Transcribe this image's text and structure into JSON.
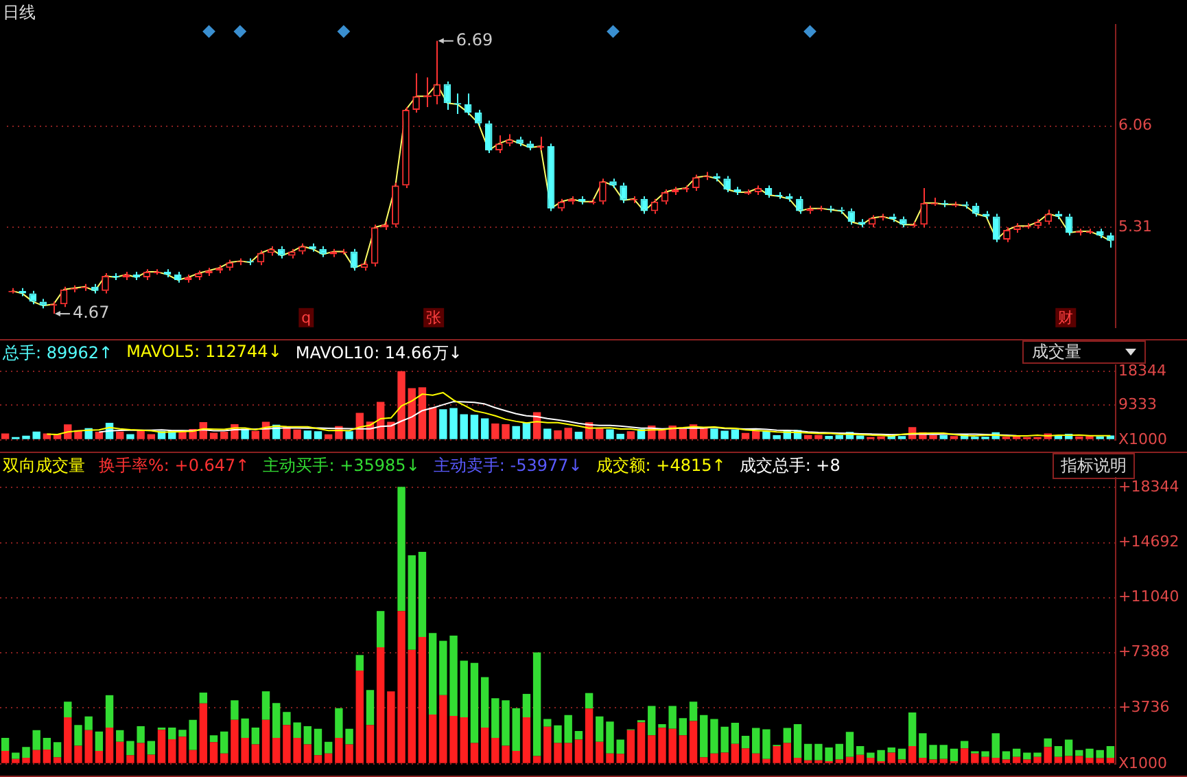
{
  "chart_data": [
    {
      "type": "candlestick",
      "title": "日线",
      "tick_labels": "y",
      "grid": "y",
      "ylim": [
        4.57,
        6.81
      ],
      "yticks": [
        5.31,
        6.06
      ],
      "categories": [
        null,
        null,
        null,
        null,
        null,
        null,
        null,
        null,
        null,
        null,
        null,
        null,
        null,
        null,
        null,
        null,
        null,
        null,
        null,
        null,
        null,
        null,
        null,
        null,
        null,
        null,
        null,
        null,
        null,
        null,
        null,
        null,
        null,
        null,
        null,
        null,
        null,
        null,
        null,
        null,
        null,
        null,
        null,
        null,
        null,
        null,
        null,
        null,
        null,
        null,
        null,
        null,
        null,
        null,
        null,
        null,
        null,
        null,
        null,
        null,
        null,
        null,
        null,
        null,
        null,
        null,
        null,
        null,
        null,
        null,
        null,
        null,
        null,
        null,
        null,
        null,
        null,
        null,
        null,
        null,
        null,
        null,
        null,
        null,
        null,
        null,
        null,
        null,
        null,
        null,
        null,
        null,
        null,
        null,
        null,
        null,
        null,
        null,
        null,
        null,
        null,
        null,
        null,
        null,
        null,
        null,
        null
      ],
      "ohlc": [
        [
          4.83,
          4.86,
          4.82,
          4.84
        ],
        [
          4.84,
          4.86,
          4.8,
          4.82
        ],
        [
          4.82,
          4.84,
          4.74,
          4.76
        ],
        [
          4.76,
          4.78,
          4.71,
          4.73
        ],
        [
          4.73,
          4.76,
          4.67,
          4.74
        ],
        [
          4.74,
          4.87,
          4.72,
          4.85
        ],
        [
          4.85,
          4.88,
          4.83,
          4.86
        ],
        [
          4.86,
          4.89,
          4.84,
          4.87
        ],
        [
          4.87,
          4.89,
          4.82,
          4.84
        ],
        [
          4.84,
          4.97,
          4.82,
          4.95
        ],
        [
          4.95,
          4.97,
          4.92,
          4.94
        ],
        [
          4.94,
          4.98,
          4.92,
          4.96
        ],
        [
          4.96,
          4.98,
          4.92,
          4.94
        ],
        [
          4.94,
          5.0,
          4.92,
          4.98
        ],
        [
          4.97,
          5.0,
          4.96,
          4.98
        ],
        [
          4.98,
          5.0,
          4.94,
          4.96
        ],
        [
          4.96,
          4.98,
          4.9,
          4.92
        ],
        [
          4.92,
          4.96,
          4.9,
          4.94
        ],
        [
          4.94,
          4.99,
          4.92,
          4.97
        ],
        [
          4.97,
          5.01,
          4.95,
          4.99
        ],
        [
          4.99,
          5.03,
          4.97,
          5.01
        ],
        [
          5.01,
          5.07,
          4.99,
          5.05
        ],
        [
          5.05,
          5.08,
          5.03,
          5.06
        ],
        [
          5.06,
          5.08,
          5.03,
          5.05
        ],
        [
          5.05,
          5.14,
          5.03,
          5.12
        ],
        [
          5.12,
          5.17,
          5.1,
          5.15
        ],
        [
          5.15,
          5.17,
          5.08,
          5.1
        ],
        [
          5.1,
          5.15,
          5.08,
          5.13
        ],
        [
          5.13,
          5.19,
          5.11,
          5.17
        ],
        [
          5.17,
          5.19,
          5.13,
          5.15
        ],
        [
          5.15,
          5.17,
          5.09,
          5.11
        ],
        [
          5.11,
          5.15,
          5.09,
          5.13
        ],
        [
          5.12,
          5.15,
          5.11,
          5.13
        ],
        [
          5.13,
          5.15,
          4.99,
          5.01
        ],
        [
          5.01,
          5.06,
          4.99,
          5.04
        ],
        [
          5.04,
          5.33,
          5.02,
          5.31
        ],
        [
          5.31,
          5.35,
          5.29,
          5.33
        ],
        [
          5.33,
          5.64,
          5.31,
          5.62
        ],
        [
          5.62,
          6.2,
          5.6,
          6.18
        ],
        [
          6.18,
          6.45,
          6.16,
          6.28
        ],
        [
          6.28,
          6.42,
          6.2,
          6.28
        ],
        [
          6.28,
          6.69,
          6.22,
          6.37
        ],
        [
          6.37,
          6.39,
          6.18,
          6.23
        ],
        [
          6.23,
          6.3,
          6.15,
          6.22
        ],
        [
          6.22,
          6.3,
          6.14,
          6.16
        ],
        [
          6.16,
          6.18,
          6.06,
          6.08
        ],
        [
          6.08,
          6.1,
          5.86,
          5.88
        ],
        [
          5.88,
          5.99,
          5.86,
          5.93
        ],
        [
          5.93,
          6.0,
          5.91,
          5.96
        ],
        [
          5.96,
          5.98,
          5.91,
          5.93
        ],
        [
          5.93,
          5.95,
          5.88,
          5.9
        ],
        [
          5.9,
          5.98,
          5.88,
          5.91
        ],
        [
          5.91,
          5.93,
          5.43,
          5.45
        ],
        [
          5.45,
          5.52,
          5.43,
          5.5
        ],
        [
          5.5,
          5.54,
          5.48,
          5.52
        ],
        [
          5.52,
          5.54,
          5.48,
          5.5
        ],
        [
          5.49,
          5.52,
          5.48,
          5.5
        ],
        [
          5.5,
          5.67,
          5.48,
          5.65
        ],
        [
          5.65,
          5.67,
          5.6,
          5.62
        ],
        [
          5.62,
          5.64,
          5.49,
          5.51
        ],
        [
          5.51,
          5.54,
          5.49,
          5.52
        ],
        [
          5.52,
          5.54,
          5.41,
          5.43
        ],
        [
          5.43,
          5.52,
          5.41,
          5.5
        ],
        [
          5.5,
          5.59,
          5.48,
          5.57
        ],
        [
          5.57,
          5.61,
          5.55,
          5.59
        ],
        [
          5.59,
          5.62,
          5.57,
          5.6
        ],
        [
          5.6,
          5.7,
          5.58,
          5.68
        ],
        [
          5.68,
          5.72,
          5.66,
          5.69
        ],
        [
          5.69,
          5.71,
          5.65,
          5.67
        ],
        [
          5.67,
          5.69,
          5.57,
          5.59
        ],
        [
          5.59,
          5.61,
          5.55,
          5.57
        ],
        [
          5.56,
          5.59,
          5.55,
          5.57
        ],
        [
          5.57,
          5.62,
          5.55,
          5.6
        ],
        [
          5.6,
          5.62,
          5.53,
          5.55
        ],
        [
          5.55,
          5.57,
          5.52,
          5.54
        ],
        [
          5.54,
          5.56,
          5.5,
          5.52
        ],
        [
          5.52,
          5.54,
          5.41,
          5.43
        ],
        [
          5.43,
          5.47,
          5.41,
          5.45
        ],
        [
          5.44,
          5.47,
          5.43,
          5.45
        ],
        [
          5.45,
          5.47,
          5.42,
          5.44
        ],
        [
          5.44,
          5.46,
          5.41,
          5.43
        ],
        [
          5.43,
          5.45,
          5.33,
          5.35
        ],
        [
          5.35,
          5.37,
          5.31,
          5.33
        ],
        [
          5.33,
          5.4,
          5.31,
          5.38
        ],
        [
          5.38,
          5.41,
          5.36,
          5.39
        ],
        [
          5.39,
          5.41,
          5.35,
          5.37
        ],
        [
          5.37,
          5.39,
          5.31,
          5.33
        ],
        [
          5.32,
          5.35,
          5.31,
          5.33
        ],
        [
          5.33,
          5.6,
          5.31,
          5.49
        ],
        [
          5.48,
          5.53,
          5.47,
          5.49
        ],
        [
          5.49,
          5.51,
          5.46,
          5.48
        ],
        [
          5.47,
          5.5,
          5.46,
          5.48
        ],
        [
          5.48,
          5.5,
          5.45,
          5.47
        ],
        [
          5.47,
          5.49,
          5.39,
          5.41
        ],
        [
          5.41,
          5.43,
          5.37,
          5.39
        ],
        [
          5.39,
          5.41,
          5.2,
          5.22
        ],
        [
          5.22,
          5.31,
          5.2,
          5.29
        ],
        [
          5.29,
          5.34,
          5.27,
          5.32
        ],
        [
          5.31,
          5.34,
          5.3,
          5.32
        ],
        [
          5.32,
          5.37,
          5.3,
          5.35
        ],
        [
          5.35,
          5.44,
          5.33,
          5.41
        ],
        [
          5.41,
          5.43,
          5.37,
          5.39
        ],
        [
          5.39,
          5.41,
          5.25,
          5.27
        ],
        [
          5.27,
          5.3,
          5.25,
          5.28
        ],
        [
          5.27,
          5.3,
          5.26,
          5.28
        ],
        [
          5.28,
          5.3,
          5.23,
          5.25
        ],
        [
          5.25,
          5.27,
          5.16,
          5.21
        ]
      ],
      "series": [
        {
          "type": "line",
          "color": "#ffff66",
          "values": [
            4.84,
            4.82,
            4.76,
            4.73,
            4.74,
            4.85,
            4.86,
            4.87,
            4.84,
            4.95,
            4.94,
            4.96,
            4.94,
            4.98,
            4.98,
            4.96,
            4.92,
            4.94,
            4.97,
            4.99,
            5.01,
            5.05,
            5.06,
            5.05,
            5.12,
            5.15,
            5.1,
            5.13,
            5.17,
            5.15,
            5.11,
            5.13,
            5.13,
            5.01,
            5.04,
            5.31,
            5.33,
            5.62,
            6.18,
            6.28,
            6.28,
            6.37,
            6.23,
            6.22,
            6.16,
            6.08,
            5.88,
            5.93,
            5.96,
            5.93,
            5.9,
            5.91,
            5.45,
            5.5,
            5.52,
            5.5,
            5.5,
            5.65,
            5.62,
            5.51,
            5.52,
            5.43,
            5.5,
            5.57,
            5.59,
            5.6,
            5.68,
            5.69,
            5.67,
            5.59,
            5.57,
            5.57,
            5.6,
            5.55,
            5.54,
            5.52,
            5.43,
            5.45,
            5.45,
            5.44,
            5.43,
            5.35,
            5.33,
            5.38,
            5.39,
            5.37,
            5.33,
            5.33,
            5.49,
            5.49,
            5.48,
            5.48,
            5.47,
            5.41,
            5.39,
            5.22,
            5.29,
            5.32,
            5.32,
            5.35,
            5.41,
            5.39,
            5.27,
            5.28,
            5.28,
            5.25,
            5.21
          ]
        },
        {
          "type": "scatter",
          "color": "#3a8fd0",
          "marker": "diamond",
          "values": [
            null,
            null,
            null,
            null,
            null,
            null,
            null,
            null,
            null,
            null,
            null,
            null,
            null,
            null,
            null,
            null,
            null,
            null,
            null,
            6.76,
            null,
            null,
            6.76,
            null,
            null,
            null,
            null,
            null,
            null,
            null,
            null,
            null,
            6.76,
            null,
            null,
            null,
            null,
            null,
            null,
            null,
            null,
            null,
            null,
            null,
            null,
            null,
            null,
            null,
            null,
            null,
            null,
            null,
            null,
            null,
            null,
            null,
            null,
            null,
            6.76,
            null,
            null,
            null,
            null,
            null,
            null,
            null,
            null,
            null,
            null,
            null,
            null,
            null,
            null,
            null,
            null,
            null,
            null,
            6.76,
            null,
            null,
            null,
            null,
            null,
            null,
            null,
            null,
            null,
            null,
            null,
            null,
            null,
            null,
            null,
            null,
            null,
            null,
            null,
            null,
            null,
            null,
            null,
            null,
            null,
            null,
            null,
            null,
            null
          ]
        }
      ],
      "annotations": [
        "4.67",
        "6.69",
        "q",
        "张",
        "财"
      ]
    },
    {
      "type": "bar",
      "title": "成交量",
      "tick_labels": "y",
      "grid": "y",
      "ylim": [
        0,
        20000
      ],
      "yticks": [
        {
          "value": 0,
          "label": "X1000"
        },
        9333,
        18344
      ],
      "categories": [
        null,
        null,
        null,
        null,
        null,
        null,
        null,
        null,
        null,
        null,
        null,
        null,
        null,
        null,
        null,
        null,
        null,
        null,
        null,
        null,
        null,
        null,
        null,
        null,
        null,
        null,
        null,
        null,
        null,
        null,
        null,
        null,
        null,
        null,
        null,
        null,
        null,
        null,
        null,
        null,
        null,
        null,
        null,
        null,
        null,
        null,
        null,
        null,
        null,
        null,
        null,
        null,
        null,
        null,
        null,
        null,
        null,
        null,
        null,
        null,
        null,
        null,
        null,
        null,
        null,
        null,
        null,
        null,
        null,
        null,
        null,
        null,
        null,
        null,
        null,
        null,
        null,
        null,
        null,
        null,
        null,
        null,
        null,
        null,
        null,
        null,
        null,
        null,
        null,
        null,
        null,
        null,
        null,
        null,
        null,
        null,
        null,
        null,
        null,
        null,
        null,
        null,
        null,
        null,
        null,
        null,
        null
      ],
      "series": [
        {
          "values": [
            1720,
            745,
            1118,
            2236,
            1720,
            1433,
            4128,
            2580,
            3153,
            2150,
            4558,
            2236,
            1519,
            2494,
            1519,
            2408,
            2408,
            2264,
            2924,
            4730,
            1892,
            2150,
            4214,
            3010,
            2408,
            4816,
            4042,
            3440,
            2752,
            2494,
            2322,
            1462,
            3698,
            2322,
            7224,
            4902,
            10148,
            4816,
            18400,
            13846,
            14075,
            8686,
            8170,
            8514,
            6851,
            6708,
            5762,
            4357,
            4214,
            3698,
            4644,
            7396,
            2981,
            2551,
            3239,
            2179,
            4701,
            3153,
            2809,
            1605,
            2293,
            2895,
            3841,
            2637,
            3841,
            3038,
            4128,
            3239,
            2981,
            2465,
            2723,
            1863,
            2379,
            2293,
            1261,
            2379,
            2637,
            1319,
            1319,
            1089,
            1319,
            2121,
            1175,
            745,
            917,
            1089,
            1003,
            3411,
            2035,
            1261,
            1261,
            1003,
            1519,
            831,
            831,
            2035,
            831,
            1003,
            745,
            745,
            1691,
            1175,
            1605,
            917,
            1003,
            917,
            1175
          ],
          "colors": [
            "#ff3232",
            "#54ffff",
            "#54ffff",
            "#54ffff",
            "#ff3232",
            "#ff3232",
            "#ff3232",
            "#ff3232",
            "#54ffff",
            "#ff3232",
            "#54ffff",
            "#ff3232",
            "#54ffff",
            "#ff3232",
            "#ff3232",
            "#54ffff",
            "#54ffff",
            "#ff3232",
            "#ff3232",
            "#ff3232",
            "#ff3232",
            "#ff3232",
            "#ff3232",
            "#54ffff",
            "#ff3232",
            "#ff3232",
            "#54ffff",
            "#ff3232",
            "#ff3232",
            "#54ffff",
            "#54ffff",
            "#ff3232",
            "#ff3232",
            "#54ffff",
            "#ff3232",
            "#ff3232",
            "#ff3232",
            "#ff3232",
            "#ff3232",
            "#ff3232",
            "#ff3232",
            "#ff3232",
            "#54ffff",
            "#54ffff",
            "#54ffff",
            "#54ffff",
            "#54ffff",
            "#ff3232",
            "#ff3232",
            "#54ffff",
            "#54ffff",
            "#ff3232",
            "#54ffff",
            "#ff3232",
            "#ff3232",
            "#54ffff",
            "#ff3232",
            "#ff3232",
            "#54ffff",
            "#54ffff",
            "#ff3232",
            "#54ffff",
            "#ff3232",
            "#ff3232",
            "#ff3232",
            "#ff3232",
            "#ff3232",
            "#ff3232",
            "#54ffff",
            "#54ffff",
            "#54ffff",
            "#ff3232",
            "#ff3232",
            "#54ffff",
            "#54ffff",
            "#54ffff",
            "#54ffff",
            "#ff3232",
            "#ff3232",
            "#54ffff",
            "#54ffff",
            "#54ffff",
            "#54ffff",
            "#ff3232",
            "#ff3232",
            "#54ffff",
            "#54ffff",
            "#ff3232",
            "#ff3232",
            "#ff3232",
            "#54ffff",
            "#ff3232",
            "#54ffff",
            "#54ffff",
            "#54ffff",
            "#54ffff",
            "#ff3232",
            "#ff3232",
            "#ff3232",
            "#ff3232",
            "#ff3232",
            "#54ffff",
            "#54ffff",
            "#ff3232",
            "#ff3232",
            "#54ffff",
            "#54ffff"
          ]
        },
        {
          "type": "line",
          "color": "#ffff00",
          "values": [
            null,
            null,
            null,
            null,
            1508,
            1450,
            2127,
            2419,
            2603,
            2689,
            3314,
            2935,
            2723,
            2590,
            2465,
            2035,
            2110,
            2219,
            2305,
            2947,
            2844,
            2792,
            3182,
            3199,
            2737,
            3320,
            3698,
            3543,
            3492,
            3509,
            3010,
            2494,
            2546,
            2460,
            3406,
            3922,
            5659,
            5882,
            9098,
            10422,
            12257,
            11965,
            12635,
            10658,
            9259,
            7786,
            7201,
            6438,
            5498,
            4948,
            4535,
            4862,
            4587,
            4614,
            4162,
            3669,
            3129,
            3165,
            3216,
            2889,
            2912,
            2551,
            2689,
            2654,
            3101,
            3250,
            3497,
            3377,
            3445,
            3174,
            3107,
            2654,
            2482,
            2345,
            2104,
            2035,
            1990,
            1856,
            1719,
            1749,
            1533,
            1475,
            1404,
            1274,
            1215,
            1005,
            1473,
            1691,
            1760,
            1794,
            1794,
            1416,
            1175,
            1089,
            1244,
            1244,
            1106,
            1089,
            1072,
            1244,
            1072,
            1243,
            1227,
            1278,
            1123,
            1123,
            1123
          ]
        },
        {
          "type": "line",
          "color": "#ffffff",
          "values": [
            null,
            null,
            null,
            null,
            null,
            null,
            null,
            null,
            null,
            2098,
            2382,
            2531,
            2571,
            2597,
            2577,
            2675,
            2503,
            2471,
            2448,
            2706,
            2440,
            2431,
            2700,
            2752,
            2841,
            2932,
            3095,
            3213,
            3196,
            3123,
            3165,
            3096,
            3044,
            2975,
            2950,
            2966,
            3592,
            3729,
            5019,
            6154,
            7829,
            8553,
            9400,
            10238,
            10177,
            10038,
            9599,
            8594,
            7772,
            6981,
            6436,
            6205,
            5720,
            5360,
            4918,
            4440,
            4052,
            3880,
            3874,
            3664,
            3415,
            3141,
            3126,
            2940,
            3054,
            3140,
            3148,
            3157,
            3344,
            3031,
            3012,
            2914,
            2935,
            2804,
            2602,
            2546,
            2422,
            2134,
            1968,
            1877,
            1818,
            1765,
            1639,
            1551,
            1466,
            1401,
            1427,
            1506,
            1504,
            1489,
            1514,
            1523,
            1525,
            1521,
            1430,
            1350,
            1251,
            1135,
            null,
            null,
            null,
            null,
            null,
            null,
            null,
            null,
            null
          ]
        }
      ],
      "annotations": [
        "总手: 89962↑",
        "MAVOL5: 112744↓",
        "MAVOL10: 14.66万↓"
      ]
    },
    {
      "type": "bar",
      "title": "双向成交量",
      "stacked": true,
      "tick_labels": "y",
      "grid": "y",
      "ylim": [
        0,
        19000
      ],
      "yticks": [
        {
          "value": 0,
          "label": "X1000"
        },
        {
          "value": 3736,
          "label": "+3736"
        },
        {
          "value": 7388,
          "label": "+7388"
        },
        {
          "value": 11040,
          "label": "+11040"
        },
        {
          "value": 14692,
          "label": "+14692"
        },
        {
          "value": 18344,
          "label": "+18344"
        }
      ],
      "categories": [
        null,
        null,
        null,
        null,
        null,
        null,
        null,
        null,
        null,
        null,
        null,
        null,
        null,
        null,
        null,
        null,
        null,
        null,
        null,
        null,
        null,
        null,
        null,
        null,
        null,
        null,
        null,
        null,
        null,
        null,
        null,
        null,
        null,
        null,
        null,
        null,
        null,
        null,
        null,
        null,
        null,
        null,
        null,
        null,
        null,
        null,
        null,
        null,
        null,
        null,
        null,
        null,
        null,
        null,
        null,
        null,
        null,
        null,
        null,
        null,
        null,
        null,
        null,
        null,
        null,
        null,
        null,
        null,
        null,
        null,
        null,
        null,
        null,
        null,
        null,
        null,
        null,
        null,
        null,
        null,
        null,
        null,
        null,
        null,
        null,
        null,
        null,
        null,
        null,
        null,
        null,
        null,
        null,
        null,
        null,
        null,
        null,
        null,
        null,
        null,
        null,
        null,
        null,
        null,
        null,
        null,
        null
      ],
      "series": [
        {
          "color": "#ff2020",
          "values": [
            860,
            318,
            404,
            917,
            946,
            430,
            3096,
            1204,
            2236,
            860,
            2408,
            1462,
            576,
            1376,
            602,
            2264,
            1634,
            1800,
            917,
            4013,
            1433,
            688,
            2924,
            1720,
            1290,
            2924,
            1720,
            2580,
            1720,
            1290,
            576,
            688,
            1720,
            1290,
            6192,
            2580,
            7740,
            4816,
            10148,
            7568,
            8428,
            3268,
            4558,
            3182,
            3096,
            1376,
            2408,
            1720,
            1204,
            860,
            3096,
            516,
            2465,
            1376,
            1376,
            1605,
            3669,
            1462,
            688,
            659,
            2236,
            2752,
            1892,
            2400,
            2322,
            1892,
            2838,
            430,
            688,
            745,
            1319,
            1032,
            688,
            318,
            1175,
            1376,
            404,
            232,
            232,
            172,
            287,
            459,
            600,
            400,
            172,
            745,
            287,
            1175,
            404,
            287,
            318,
            172,
            1032,
            688,
            459,
            404,
            287,
            459,
            287,
            459,
            1118,
            459,
            516,
            516,
            404,
            373,
            404
          ]
        },
        {
          "color": "#33dd33",
          "values": [
            860,
            427,
            714,
            1319,
            774,
            1003,
            1032,
            1376,
            917,
            1290,
            2150,
            774,
            943,
            1118,
            917,
            144,
            774,
            464,
            2007,
            717,
            459,
            1462,
            1290,
            1290,
            1118,
            1892,
            2322,
            860,
            1032,
            1204,
            1746,
            774,
            1978,
            1032,
            1032,
            2322,
            2408,
            0,
            8252,
            6278,
            5647,
            5418,
            3612,
            5332,
            3755,
            5332,
            3354,
            2637,
            3010,
            2838,
            1548,
            6880,
            516,
            1175,
            1863,
            574,
            1032,
            1691,
            2121,
            946,
            57,
            143,
            1949,
            237,
            1519,
            1146,
            1290,
            2809,
            2293,
            1720,
            1404,
            831,
            1691,
            1975,
            86,
            1003,
            2233,
            1087,
            1087,
            917,
            1032,
            1662,
            575,
            345,
            745,
            344,
            716,
            2236,
            1631,
            974,
            943,
            831,
            487,
            143,
            372,
            1631,
            544,
            544,
            458,
            286,
            573,
            716,
            1089,
            401,
            599,
            544,
            771
          ]
        }
      ],
      "annotations": [
        "换手率%: +0.647↑",
        "主动买手: +35985↓",
        "主动卖手: -53977↓",
        "成交额: +4815↑",
        "成交总手: +8",
        "指标说明"
      ]
    }
  ]
}
